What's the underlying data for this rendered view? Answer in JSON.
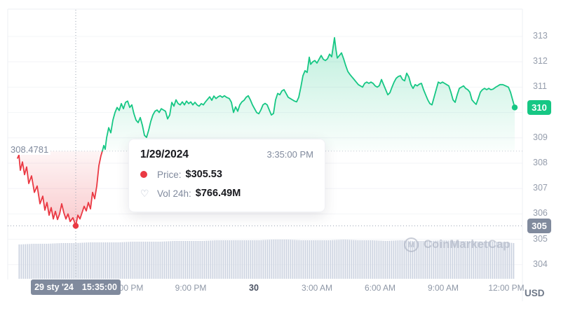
{
  "meta": {
    "watermark_text": "CoinMarketCap"
  },
  "tooltip": {
    "date": "1/29/2024",
    "time": "3:35:00 PM",
    "price_label": "Price:",
    "price_value": "$305.53",
    "vol_label": "Vol 24h:",
    "vol_value": "$766.49M"
  },
  "reference": {
    "label": "308.4781",
    "price": 308.4781
  },
  "y_axis": {
    "unit": "USD",
    "ticks": [
      313,
      312,
      311,
      310,
      309,
      308,
      307,
      306,
      305,
      304
    ],
    "current_badge": "310",
    "hover_badge": "305"
  },
  "x_axis": {
    "ticks": [
      {
        "label": "6:00 PM",
        "m": 314
      },
      {
        "label": "9:00 PM",
        "m": 494
      },
      {
        "label": "30",
        "m": 674,
        "emphasis": true
      },
      {
        "label": "3:00 AM",
        "m": 854
      },
      {
        "label": "6:00 AM",
        "m": 1034
      },
      {
        "label": "9:00 AM",
        "m": 1214
      },
      {
        "label": "12:00 PM",
        "m": 1394
      }
    ],
    "hover_badge": {
      "date": "29 sty '24",
      "time": "15:35:00"
    }
  },
  "chart_data": {
    "type": "line",
    "x_unit": "minutes since chart start (12:46 PM Jan 29)",
    "baseline_price": 308.4781,
    "y_range": [
      304,
      313
    ],
    "colors": {
      "up": "#16c784",
      "down": "#ea3943",
      "volume": "#ccd3e0"
    },
    "hover_point": {
      "m": 166,
      "price": 305.53
    },
    "last_point": {
      "m": 1418,
      "price": 310.2
    },
    "series": [
      {
        "name": "price",
        "points": [
          [
            0,
            308.2
          ],
          [
            4,
            308.32
          ],
          [
            8,
            307.72
          ],
          [
            14,
            308.05
          ],
          [
            20,
            307.55
          ],
          [
            26,
            307.85
          ],
          [
            32,
            307.2
          ],
          [
            40,
            307.5
          ],
          [
            48,
            306.85
          ],
          [
            56,
            307.1
          ],
          [
            64,
            306.4
          ],
          [
            72,
            306.7
          ],
          [
            78,
            306.15
          ],
          [
            84,
            306.45
          ],
          [
            90,
            305.95
          ],
          [
            96,
            306.25
          ],
          [
            102,
            305.8
          ],
          [
            108,
            306.1
          ],
          [
            114,
            305.78
          ],
          [
            120,
            306.0
          ],
          [
            126,
            306.4
          ],
          [
            132,
            306.05
          ],
          [
            138,
            305.8
          ],
          [
            144,
            306.0
          ],
          [
            150,
            305.7
          ],
          [
            158,
            305.85
          ],
          [
            166,
            305.53
          ],
          [
            172,
            305.95
          ],
          [
            178,
            305.8
          ],
          [
            184,
            306.05
          ],
          [
            190,
            306.3
          ],
          [
            196,
            306.12
          ],
          [
            202,
            306.45
          ],
          [
            208,
            306.2
          ],
          [
            214,
            306.85
          ],
          [
            220,
            306.6
          ],
          [
            226,
            307.1
          ],
          [
            232,
            307.9
          ],
          [
            238,
            308.3
          ],
          [
            242,
            308.48
          ],
          [
            246,
            308.7
          ],
          [
            250,
            308.55
          ],
          [
            254,
            309.0
          ],
          [
            260,
            309.4
          ],
          [
            266,
            309.2
          ],
          [
            272,
            309.7
          ],
          [
            278,
            310.0
          ],
          [
            284,
            310.2
          ],
          [
            290,
            310.08
          ],
          [
            296,
            310.35
          ],
          [
            302,
            310.15
          ],
          [
            308,
            310.4
          ],
          [
            314,
            310.45
          ],
          [
            320,
            310.2
          ],
          [
            326,
            310.3
          ],
          [
            332,
            309.95
          ],
          [
            338,
            309.7
          ],
          [
            344,
            309.6
          ],
          [
            350,
            309.8
          ],
          [
            356,
            309.5
          ],
          [
            362,
            309.1
          ],
          [
            368,
            309.02
          ],
          [
            374,
            309.3
          ],
          [
            380,
            309.65
          ],
          [
            386,
            309.9
          ],
          [
            392,
            310.05
          ],
          [
            398,
            310.1
          ],
          [
            404,
            310.0
          ],
          [
            410,
            310.15
          ],
          [
            416,
            310.1
          ],
          [
            422,
            310.05
          ],
          [
            428,
            309.75
          ],
          [
            434,
            309.9
          ],
          [
            440,
            310.4
          ],
          [
            446,
            310.25
          ],
          [
            452,
            310.5
          ],
          [
            458,
            310.35
          ],
          [
            464,
            310.3
          ],
          [
            470,
            310.42
          ],
          [
            476,
            310.3
          ],
          [
            482,
            310.45
          ],
          [
            488,
            310.35
          ],
          [
            494,
            310.42
          ],
          [
            500,
            310.3
          ],
          [
            506,
            310.4
          ],
          [
            512,
            310.3
          ],
          [
            518,
            310.25
          ],
          [
            524,
            310.35
          ],
          [
            530,
            310.3
          ],
          [
            536,
            310.42
          ],
          [
            542,
            310.52
          ],
          [
            548,
            310.62
          ],
          [
            554,
            310.48
          ],
          [
            560,
            310.65
          ],
          [
            566,
            310.55
          ],
          [
            572,
            310.62
          ],
          [
            578,
            310.66
          ],
          [
            584,
            310.6
          ],
          [
            590,
            310.66
          ],
          [
            596,
            310.6
          ],
          [
            604,
            310.55
          ],
          [
            610,
            310.4
          ],
          [
            616,
            310.0
          ],
          [
            622,
            310.22
          ],
          [
            628,
            310.05
          ],
          [
            634,
            310.3
          ],
          [
            640,
            310.42
          ],
          [
            646,
            310.48
          ],
          [
            652,
            310.6
          ],
          [
            658,
            310.66
          ],
          [
            664,
            310.5
          ],
          [
            670,
            310.3
          ],
          [
            676,
            310.15
          ],
          [
            682,
            310.0
          ],
          [
            688,
            309.95
          ],
          [
            694,
            310.1
          ],
          [
            700,
            310.3
          ],
          [
            706,
            310.36
          ],
          [
            712,
            310.3
          ],
          [
            718,
            310.1
          ],
          [
            724,
            309.9
          ],
          [
            730,
            309.96
          ],
          [
            736,
            310.5
          ],
          [
            742,
            310.75
          ],
          [
            748,
            310.7
          ],
          [
            754,
            310.85
          ],
          [
            760,
            310.9
          ],
          [
            766,
            310.75
          ],
          [
            772,
            310.6
          ],
          [
            778,
            310.55
          ],
          [
            784,
            310.5
          ],
          [
            790,
            310.45
          ],
          [
            796,
            310.42
          ],
          [
            802,
            310.6
          ],
          [
            808,
            311.0
          ],
          [
            814,
            311.45
          ],
          [
            820,
            311.65
          ],
          [
            826,
            311.58
          ],
          [
            832,
            312.18
          ],
          [
            836,
            311.9
          ],
          [
            842,
            312.0
          ],
          [
            848,
            312.05
          ],
          [
            854,
            311.95
          ],
          [
            860,
            312.1
          ],
          [
            866,
            312.25
          ],
          [
            872,
            312.1
          ],
          [
            878,
            312.05
          ],
          [
            884,
            312.12
          ],
          [
            890,
            312.3
          ],
          [
            896,
            312.2
          ],
          [
            904,
            312.95
          ],
          [
            908,
            312.5
          ],
          [
            912,
            312.15
          ],
          [
            918,
            312.25
          ],
          [
            924,
            312.35
          ],
          [
            930,
            312.12
          ],
          [
            936,
            311.85
          ],
          [
            942,
            311.62
          ],
          [
            948,
            311.5
          ],
          [
            954,
            311.4
          ],
          [
            960,
            311.3
          ],
          [
            966,
            311.2
          ],
          [
            972,
            311.1
          ],
          [
            978,
            311.05
          ],
          [
            984,
            311.0
          ],
          [
            990,
            311.15
          ],
          [
            996,
            311.2
          ],
          [
            1002,
            311.15
          ],
          [
            1008,
            311.2
          ],
          [
            1014,
            311.15
          ],
          [
            1020,
            311.05
          ],
          [
            1026,
            311.0
          ],
          [
            1032,
            311.06
          ],
          [
            1038,
            311.3
          ],
          [
            1044,
            311.1
          ],
          [
            1050,
            310.9
          ],
          [
            1056,
            310.7
          ],
          [
            1062,
            310.78
          ],
          [
            1068,
            311.0
          ],
          [
            1074,
            311.2
          ],
          [
            1080,
            311.35
          ],
          [
            1086,
            311.42
          ],
          [
            1092,
            311.45
          ],
          [
            1098,
            311.3
          ],
          [
            1104,
            311.25
          ],
          [
            1110,
            311.55
          ],
          [
            1116,
            311.4
          ],
          [
            1122,
            311.1
          ],
          [
            1128,
            310.95
          ],
          [
            1134,
            311.1
          ],
          [
            1140,
            311.05
          ],
          [
            1146,
            311.12
          ],
          [
            1152,
            311.15
          ],
          [
            1158,
            310.9
          ],
          [
            1164,
            310.7
          ],
          [
            1170,
            310.5
          ],
          [
            1176,
            310.35
          ],
          [
            1182,
            310.3
          ],
          [
            1188,
            310.6
          ],
          [
            1194,
            310.9
          ],
          [
            1200,
            311.2
          ],
          [
            1206,
            311.15
          ],
          [
            1212,
            311.2
          ],
          [
            1218,
            311.15
          ],
          [
            1224,
            311.1
          ],
          [
            1230,
            311.05
          ],
          [
            1236,
            310.8
          ],
          [
            1242,
            310.5
          ],
          [
            1248,
            310.4
          ],
          [
            1254,
            310.7
          ],
          [
            1260,
            310.95
          ],
          [
            1266,
            311.0
          ],
          [
            1272,
            311.05
          ],
          [
            1278,
            310.95
          ],
          [
            1284,
            310.9
          ],
          [
            1290,
            310.8
          ],
          [
            1296,
            310.5
          ],
          [
            1302,
            310.4
          ],
          [
            1308,
            310.32
          ],
          [
            1314,
            310.55
          ],
          [
            1320,
            310.8
          ],
          [
            1326,
            310.9
          ],
          [
            1332,
            310.95
          ],
          [
            1338,
            310.9
          ],
          [
            1344,
            310.95
          ],
          [
            1350,
            310.9
          ],
          [
            1356,
            310.92
          ],
          [
            1364,
            311.0
          ],
          [
            1370,
            311.05
          ],
          [
            1376,
            311.1
          ],
          [
            1384,
            311.1
          ],
          [
            1392,
            311.05
          ],
          [
            1400,
            311.0
          ],
          [
            1406,
            310.8
          ],
          [
            1412,
            310.5
          ],
          [
            1418,
            310.2
          ]
        ]
      }
    ],
    "volume_profile": [
      49,
      50,
      50,
      51,
      51,
      52,
      52,
      52,
      53,
      53,
      53,
      54,
      54,
      54,
      55,
      55,
      55,
      55,
      56,
      56,
      55,
      55,
      55,
      56,
      55,
      55,
      54,
      55,
      54,
      54,
      55,
      54,
      54,
      53,
      53,
      51
    ]
  }
}
